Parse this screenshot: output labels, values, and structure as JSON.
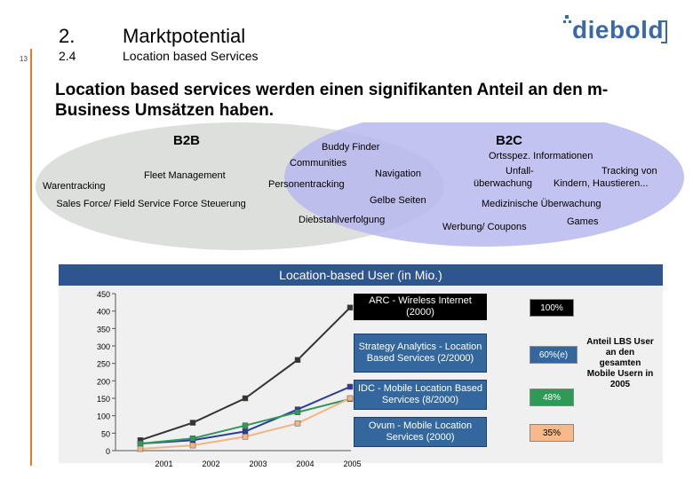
{
  "slide": {
    "page_number": "13",
    "section_number": "2.",
    "section_title": "Marktpotential",
    "subsection_number": "2.4",
    "subsection_title": "Location based Services",
    "logo_text": "diebold",
    "headline": "Location based services werden einen signifikanten Anteil an den m-Business Umsätzen haben."
  },
  "venn": {
    "b2b_label": "B2B",
    "b2c_label": "B2C",
    "b2b_items": [
      "Fleet Management",
      "Warentracking",
      "Sales Force/ Field Service Force Steuerung"
    ],
    "overlap_items": [
      "Buddy Finder",
      "Communities",
      "Navigation",
      "Personentracking",
      "Gelbe Seiten",
      "Diebstahlverfolgung"
    ],
    "b2c_items": [
      "Ortsspez. Informationen",
      "Unfall-",
      "Tracking von",
      "überwachung",
      "Kindern, Haustieren...",
      "Medizinische Überwachung",
      "Games",
      "Werbung/ Coupons"
    ]
  },
  "side_note": "Anteil LBS User an den gesamten Mobile Usern in 2005",
  "colors": {
    "title_bar": "#2e5590",
    "arc": "#333333",
    "strategy": "#2b3b9c",
    "idc": "#2f9a58",
    "ovum": "#f4b484"
  },
  "chart_data": {
    "type": "line",
    "title": "Location-based User (in Mio.)",
    "xlabel": "",
    "ylabel": "",
    "categories": [
      "2001",
      "2002",
      "2003",
      "2004",
      "2005"
    ],
    "ylim": [
      0,
      450
    ],
    "yticks": [
      "0",
      "50",
      "100",
      "150",
      "200",
      "250",
      "300",
      "350",
      "400",
      "450"
    ],
    "series": [
      {
        "name": "ARC - Wireless Internet (2000)",
        "values": [
          30,
          80,
          150,
          260,
          410
        ],
        "share": "100%"
      },
      {
        "name": "Strategy Analytics - Location Based Services (2/2000)",
        "values": [
          20,
          30,
          55,
          118,
          183
        ],
        "share": "60%(e)"
      },
      {
        "name": "IDC - Mobile Location Based Services (8/2000)",
        "values": [
          20,
          35,
          72,
          110,
          148
        ],
        "share": "48%"
      },
      {
        "name": "Ovum - Mobile Location Services (2000)",
        "values": [
          5,
          15,
          40,
          78,
          150
        ],
        "share": "35%"
      }
    ]
  }
}
